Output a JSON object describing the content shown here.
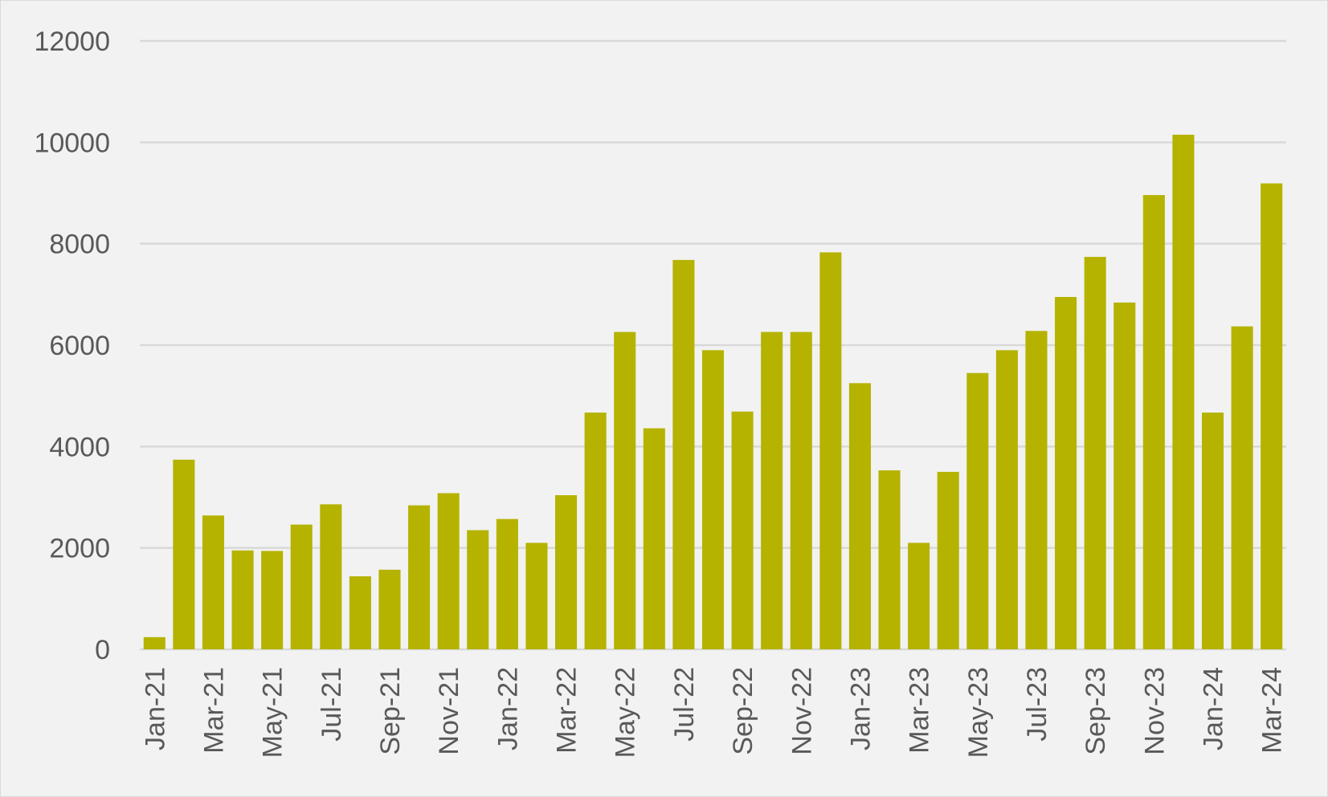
{
  "chart_data": {
    "type": "bar",
    "title": "",
    "xlabel": "",
    "ylabel": "",
    "ylim": [
      0,
      12000
    ],
    "yticks": [
      0,
      2000,
      4000,
      6000,
      8000,
      10000,
      12000
    ],
    "grid": true,
    "legend": "none",
    "bar_color": "#b5b300",
    "categories": [
      "Jan-21",
      "Feb-21",
      "Mar-21",
      "Apr-21",
      "May-21",
      "Jun-21",
      "Jul-21",
      "Aug-21",
      "Sep-21",
      "Oct-21",
      "Nov-21",
      "Dec-21",
      "Jan-22",
      "Feb-22",
      "Mar-22",
      "Apr-22",
      "May-22",
      "Jun-22",
      "Jul-22",
      "Aug-22",
      "Sep-22",
      "Oct-22",
      "Nov-22",
      "Dec-22",
      "Jan-23",
      "Feb-23",
      "Mar-23",
      "Apr-23",
      "May-23",
      "Jun-23",
      "Jul-23",
      "Aug-23",
      "Sep-23",
      "Oct-23",
      "Nov-23",
      "Dec-23",
      "Jan-24",
      "Feb-24",
      "Mar-24"
    ],
    "tick_labels_shown": [
      "Jan-21",
      "Mar-21",
      "May-21",
      "Jul-21",
      "Sep-21",
      "Nov-21",
      "Jan-22",
      "Mar-22",
      "May-22",
      "Jul-22",
      "Sep-22",
      "Nov-22",
      "Jan-23",
      "Mar-23",
      "May-23",
      "Jul-23",
      "Sep-23",
      "Nov-23",
      "Jan-24",
      "Mar-24"
    ],
    "values": [
      240,
      3740,
      2640,
      1950,
      1940,
      2460,
      2860,
      1440,
      1570,
      2840,
      3080,
      2350,
      2570,
      2100,
      3040,
      4670,
      6260,
      4360,
      7680,
      5900,
      4690,
      6260,
      6260,
      7830,
      5250,
      3530,
      2100,
      3500,
      5450,
      5900,
      6280,
      6950,
      7740,
      6840,
      8960,
      10150,
      4670,
      6370,
      9190
    ]
  }
}
